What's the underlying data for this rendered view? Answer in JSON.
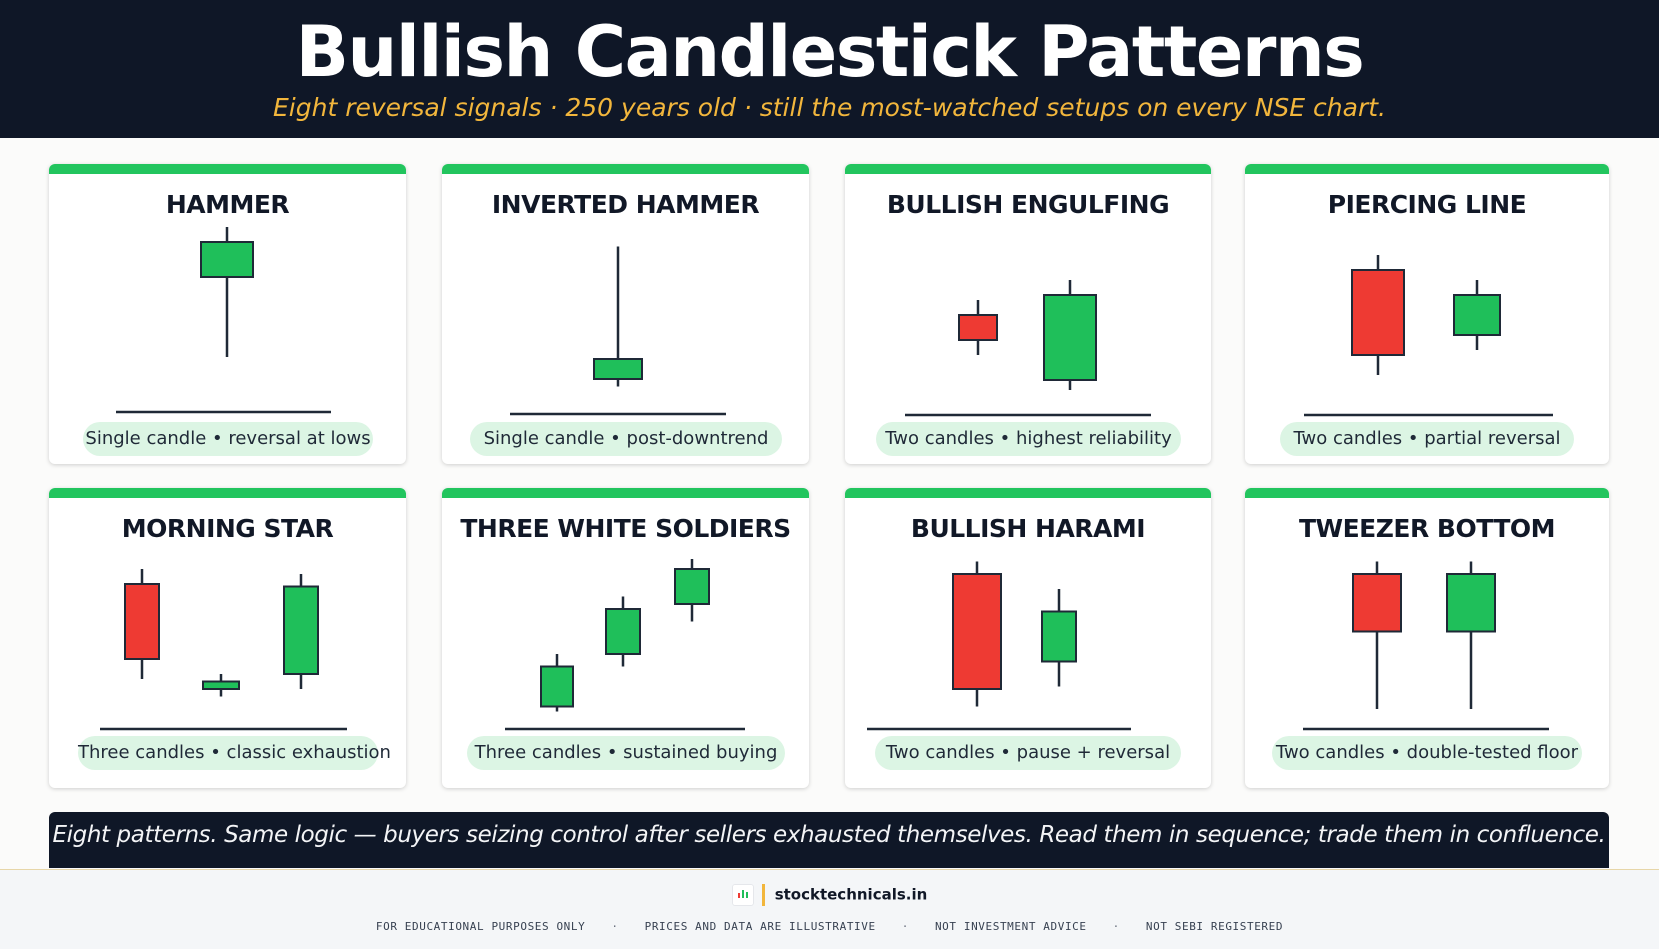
{
  "header": {
    "title": "Bullish Candlestick Patterns",
    "subtitle": "Eight reversal signals · 250 years old · still the most-watched setups on every NSE chart."
  },
  "colors": {
    "bullish": "#1fbf5a",
    "bearish": "#ee3a33",
    "accent": "#22c55e",
    "navy": "#0f1727",
    "gold": "#f2b63c"
  },
  "patterns": [
    {
      "name": "HAMMER",
      "caption": "Single candle • reversal at lows",
      "candles": [
        {
          "color": "bullish",
          "open": 5.0,
          "close": 6.4,
          "high": 7.0,
          "low": 1.8
        }
      ]
    },
    {
      "name": "INVERTED HAMMER",
      "caption": "Single candle  •  post-downtrend",
      "candles": [
        {
          "color": "bullish",
          "open": 1.0,
          "close": 1.8,
          "high": 6.3,
          "low": 0.7
        }
      ]
    },
    {
      "name": "BULLISH ENGULFING",
      "caption": "Two candles • highest reliability",
      "candles": [
        {
          "color": "bearish",
          "open": 3.6,
          "close": 2.6,
          "high": 4.2,
          "low": 2.0
        },
        {
          "color": "bullish",
          "open": 1.0,
          "close": 4.4,
          "high": 5.0,
          "low": 0.6
        }
      ]
    },
    {
      "name": "PIERCING LINE",
      "caption": "Two candles • partial reversal",
      "candles": [
        {
          "color": "bearish",
          "open": 5.4,
          "close": 2.0,
          "high": 6.0,
          "low": 1.2
        },
        {
          "color": "bullish",
          "open": 2.8,
          "close": 4.4,
          "high": 5.0,
          "low": 2.2
        }
      ]
    },
    {
      "name": "MORNING STAR",
      "caption": "Three candles • classic exhaustion",
      "candles": [
        {
          "color": "bearish",
          "open": 5.4,
          "close": 2.4,
          "high": 6.0,
          "low": 1.6
        },
        {
          "color": "bullish",
          "open": 1.2,
          "close": 1.5,
          "high": 1.8,
          "low": 0.9
        },
        {
          "color": "bullish",
          "open": 1.8,
          "close": 5.3,
          "high": 5.8,
          "low": 1.2
        }
      ]
    },
    {
      "name": "THREE WHITE SOLDIERS",
      "caption": "Three candles • sustained buying",
      "candles": [
        {
          "color": "bullish",
          "open": 0.5,
          "close": 2.1,
          "high": 2.6,
          "low": 0.3
        },
        {
          "color": "bullish",
          "open": 2.6,
          "close": 4.4,
          "high": 4.9,
          "low": 2.1
        },
        {
          "color": "bullish",
          "open": 4.6,
          "close": 6.0,
          "high": 6.4,
          "low": 3.9
        }
      ]
    },
    {
      "name": "BULLISH HARAMI",
      "caption": "Two candles • pause + reversal",
      "candles": [
        {
          "color": "bearish",
          "open": 5.8,
          "close": 1.2,
          "high": 6.3,
          "low": 0.5
        },
        {
          "color": "bullish",
          "open": 2.3,
          "close": 4.3,
          "high": 5.2,
          "low": 1.3
        }
      ]
    },
    {
      "name": "TWEEZER BOTTOM",
      "caption": "Two candles • double-tested floor",
      "candles": [
        {
          "color": "bearish",
          "open": 5.8,
          "close": 3.5,
          "high": 6.3,
          "low": 0.4
        },
        {
          "color": "bullish",
          "open": 3.5,
          "close": 5.8,
          "high": 6.3,
          "low": 0.4
        }
      ]
    }
  ],
  "banner": {
    "text": "Eight patterns. Same logic — buyers seizing control after sellers exhausted themselves. Read them in sequence; trade them in confluence."
  },
  "footer": {
    "brand": "stocktechnicals.in",
    "disclaimers": [
      "FOR EDUCATIONAL PURPOSES ONLY",
      "PRICES AND DATA ARE ILLUSTRATIVE",
      "NOT INVESTMENT ADVICE",
      "NOT SEBI REGISTERED"
    ]
  }
}
